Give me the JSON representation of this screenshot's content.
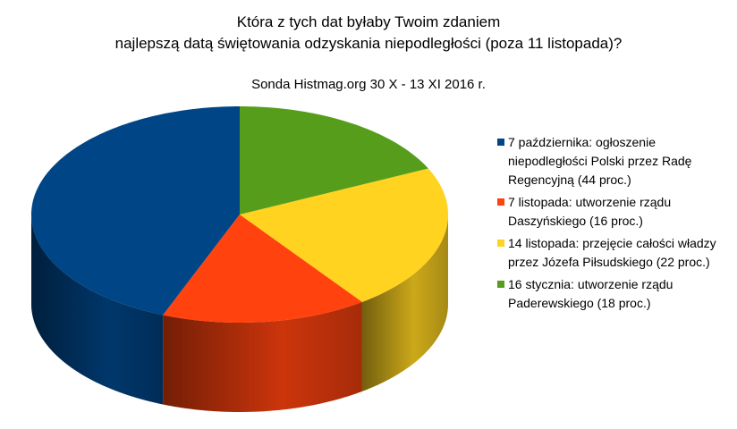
{
  "chart_data": {
    "type": "pie3d",
    "title": [
      "Która z tych dat byłaby Twoim zdaniem",
      "najlepszą datą świętowania odzyskania niepodległości (poza 11 listopada)?"
    ],
    "subtitle": "Sonda Histmag.org 30 X - 13 XI 2016 r.",
    "categories": [
      "7 października: ogłoszenie niepodległości Polski przez Radę Regencyjną (44 proc.)",
      "7 listopada: utworzenie rządu Daszyńskiego (16 proc.)",
      "14 listopada: przejęcie całości władzy przez Józefa Piłsudskiego (22 proc.)",
      "16 stycznia: utworzenie rządu Paderewskiego (18 proc.)"
    ],
    "values": [
      44,
      16,
      22,
      18
    ],
    "colors": [
      "#004586",
      "#ff420e",
      "#ffd320",
      "#579d1c"
    ],
    "legend": "right"
  }
}
